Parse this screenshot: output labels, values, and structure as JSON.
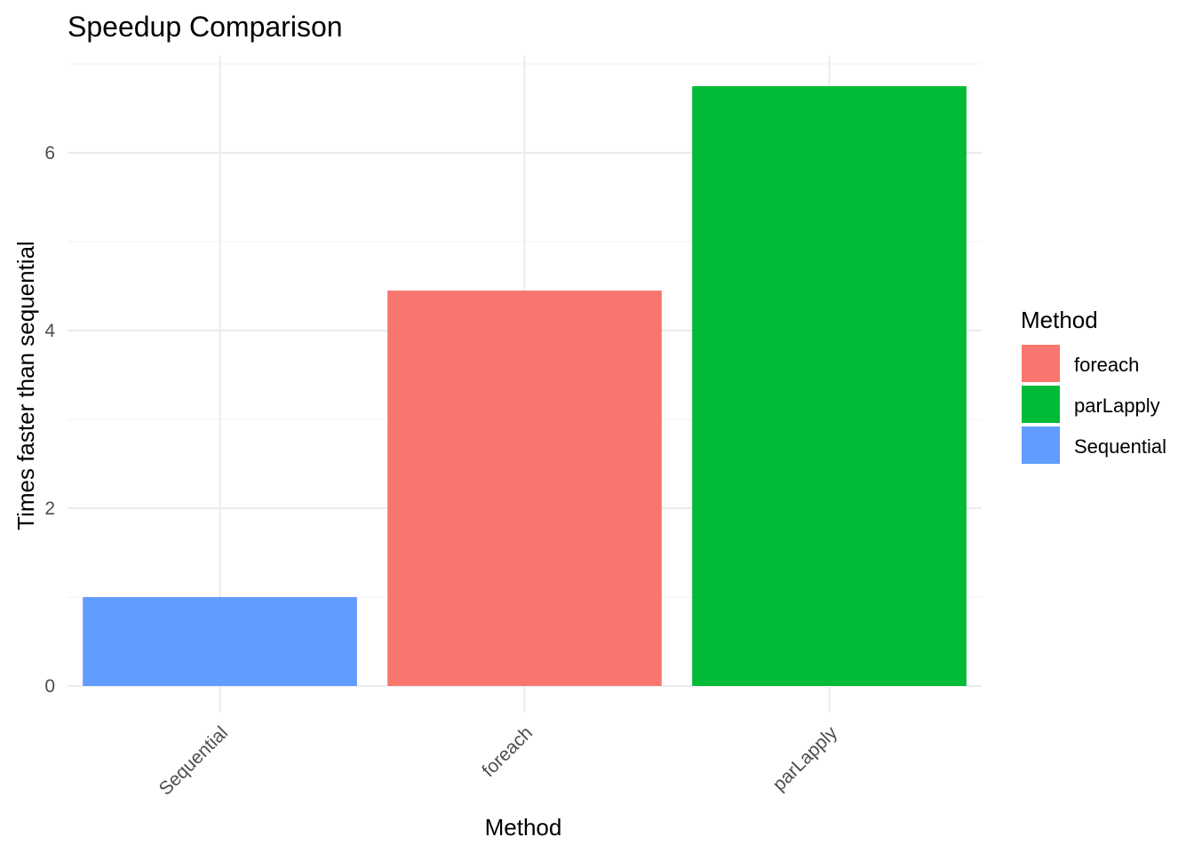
{
  "chart_data": {
    "type": "bar",
    "title": "Speedup Comparison",
    "xlabel": "Method",
    "ylabel": "Times faster than sequential",
    "categories": [
      "Sequential",
      "foreach",
      "parLapply"
    ],
    "values": [
      1.0,
      4.45,
      6.75
    ],
    "bar_colors": [
      "#619CFF",
      "#F8766D",
      "#00BA38"
    ],
    "ylim": [
      0,
      7
    ],
    "yticks": [
      0,
      2,
      4,
      6
    ],
    "ytick_labels": [
      "0",
      "2",
      "4",
      "6"
    ],
    "grid": true,
    "legend": {
      "title": "Method",
      "position": "right",
      "entries": [
        {
          "label": "foreach",
          "color": "#F8766D"
        },
        {
          "label": "parLapply",
          "color": "#00BA38"
        },
        {
          "label": "Sequential",
          "color": "#619CFF"
        }
      ]
    }
  }
}
